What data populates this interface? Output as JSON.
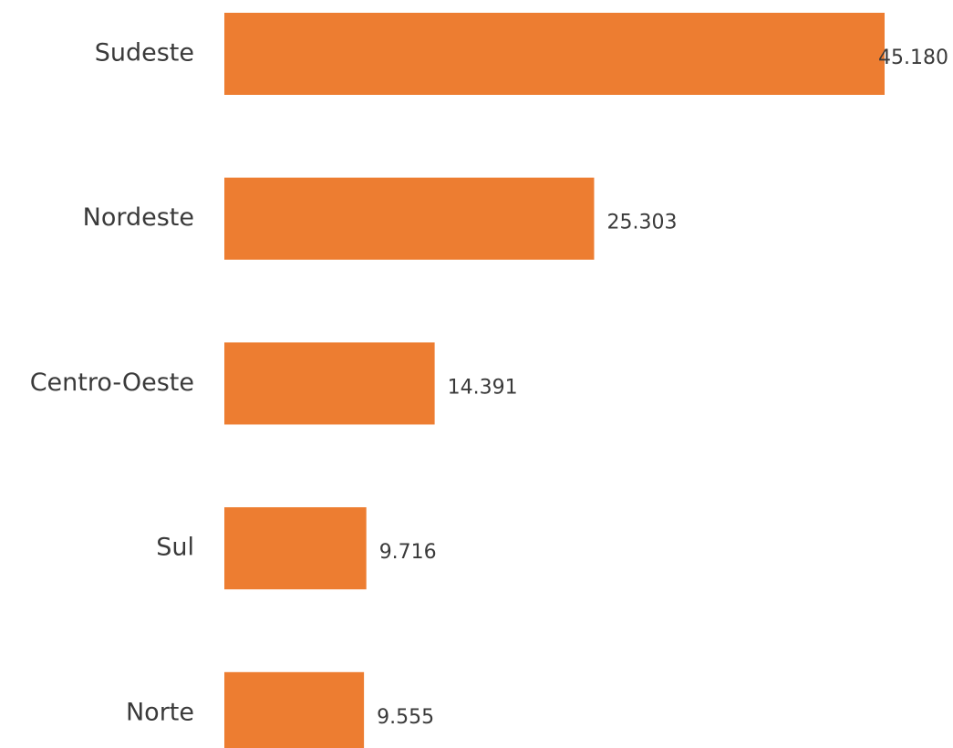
{
  "chart_data": {
    "type": "bar",
    "orientation": "horizontal",
    "categories": [
      "Sudeste",
      "Nordeste",
      "Centro-Oeste",
      "Sul",
      "Norte"
    ],
    "values": [
      45180,
      25303,
      14391,
      9716,
      9555
    ],
    "value_labels": [
      "45.180",
      "25.303",
      "14.391",
      "9.716",
      "9.555"
    ],
    "color": "#ED7D31"
  }
}
